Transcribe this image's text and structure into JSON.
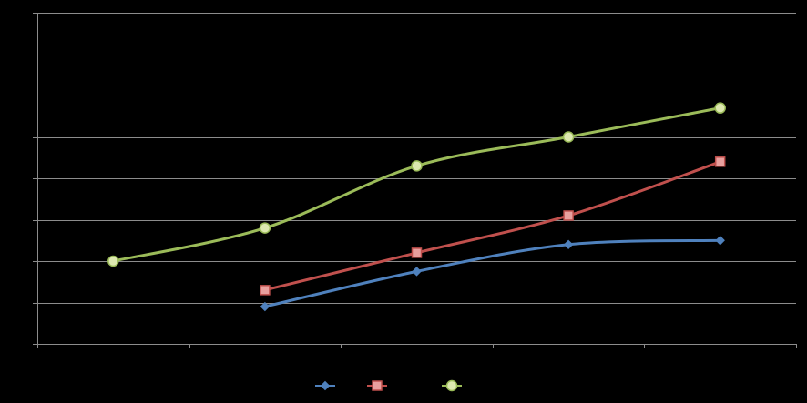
{
  "chart_data": {
    "type": "line",
    "title": "",
    "xlabel": "",
    "ylabel": "",
    "x": [
      0,
      1,
      2,
      3,
      4
    ],
    "xlim": [
      -0.5,
      4.5
    ],
    "ylim": [
      0,
      8
    ],
    "grid": true,
    "legend_position": "bottom",
    "smooth": true,
    "series": [
      {
        "color": "#4F81BD",
        "marker": "diamond",
        "x": [
          1,
          2,
          3,
          4
        ],
        "values": [
          0.9,
          1.75,
          2.4,
          2.5
        ]
      },
      {
        "color": "#C0504D",
        "marker": "square",
        "x": [
          1,
          2,
          3,
          4
        ],
        "values": [
          1.3,
          2.2,
          3.1,
          4.4
        ]
      },
      {
        "color": "#9BBB59",
        "marker": "circle",
        "x": [
          0,
          1,
          2,
          3,
          4
        ],
        "values": [
          2.0,
          2.8,
          4.3,
          5.0,
          5.7
        ]
      }
    ]
  }
}
